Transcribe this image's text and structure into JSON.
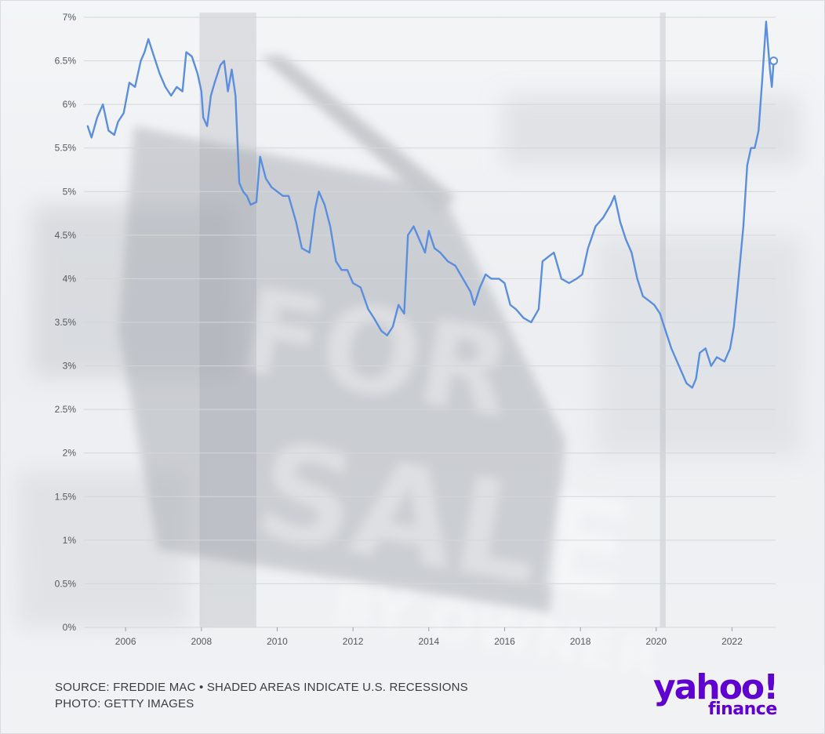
{
  "chart_data": {
    "type": "line",
    "title": "",
    "xlabel": "",
    "ylabel": "",
    "xlim": [
      2004.9,
      2023.15
    ],
    "ylim": [
      0,
      7
    ],
    "y_ticks": [
      "0%",
      "0.5%",
      "1%",
      "1.5%",
      "2%",
      "2.5%",
      "3%",
      "3.5%",
      "4%",
      "4.5%",
      "5%",
      "5.5%",
      "6%",
      "6.5%",
      "7%"
    ],
    "x_ticks": [
      "2006",
      "2008",
      "2010",
      "2012",
      "2014",
      "2016",
      "2018",
      "2020",
      "2022"
    ],
    "grid": true,
    "recession_shading": [
      {
        "start": 2007.95,
        "end": 2009.45
      },
      {
        "start": 2020.1,
        "end": 2020.25
      }
    ],
    "series": [
      {
        "color": "#5b8fde",
        "x": [
          2005.0,
          2005.1,
          2005.25,
          2005.4,
          2005.55,
          2005.7,
          2005.8,
          2005.95,
          2006.1,
          2006.25,
          2006.4,
          2006.5,
          2006.6,
          2006.75,
          2006.9,
          2007.05,
          2007.2,
          2007.35,
          2007.5,
          2007.6,
          2007.75,
          2007.9,
          2008.0,
          2008.05,
          2008.15,
          2008.25,
          2008.35,
          2008.5,
          2008.6,
          2008.7,
          2008.8,
          2008.9,
          2009.0,
          2009.1,
          2009.2,
          2009.3,
          2009.45,
          2009.55,
          2009.7,
          2009.85,
          2010.0,
          2010.15,
          2010.3,
          2010.5,
          2010.65,
          2010.85,
          2011.0,
          2011.1,
          2011.25,
          2011.4,
          2011.55,
          2011.7,
          2011.85,
          2012.0,
          2012.2,
          2012.4,
          2012.55,
          2012.75,
          2012.9,
          2013.05,
          2013.2,
          2013.35,
          2013.45,
          2013.6,
          2013.75,
          2013.9,
          2014.0,
          2014.15,
          2014.3,
          2014.5,
          2014.7,
          2014.9,
          2015.1,
          2015.2,
          2015.35,
          2015.5,
          2015.65,
          2015.85,
          2016.0,
          2016.15,
          2016.3,
          2016.5,
          2016.7,
          2016.9,
          2017.0,
          2017.15,
          2017.3,
          2017.5,
          2017.7,
          2017.9,
          2018.05,
          2018.2,
          2018.4,
          2018.6,
          2018.8,
          2018.9,
          2019.05,
          2019.2,
          2019.35,
          2019.5,
          2019.65,
          2019.8,
          2019.95,
          2020.1,
          2020.25,
          2020.4,
          2020.6,
          2020.8,
          2020.95,
          2021.05,
          2021.15,
          2021.3,
          2021.45,
          2021.6,
          2021.8,
          2021.95,
          2022.05,
          2022.15,
          2022.3,
          2022.4,
          2022.5,
          2022.6,
          2022.7,
          2022.8,
          2022.9,
          2023.0,
          2023.05,
          2023.1
        ],
        "values": [
          5.75,
          5.62,
          5.85,
          6.0,
          5.7,
          5.65,
          5.8,
          5.9,
          6.25,
          6.2,
          6.5,
          6.6,
          6.75,
          6.55,
          6.35,
          6.2,
          6.1,
          6.2,
          6.15,
          6.6,
          6.55,
          6.35,
          6.15,
          5.85,
          5.75,
          6.1,
          6.25,
          6.45,
          6.5,
          6.15,
          6.4,
          6.1,
          5.1,
          5.0,
          4.95,
          4.85,
          4.88,
          5.4,
          5.15,
          5.05,
          5.0,
          4.95,
          4.95,
          4.65,
          4.35,
          4.3,
          4.8,
          5.0,
          4.85,
          4.6,
          4.2,
          4.1,
          4.1,
          3.95,
          3.9,
          3.65,
          3.55,
          3.4,
          3.35,
          3.45,
          3.7,
          3.6,
          4.5,
          4.6,
          4.45,
          4.3,
          4.55,
          4.35,
          4.3,
          4.2,
          4.15,
          4.0,
          3.85,
          3.7,
          3.9,
          4.05,
          4.0,
          4.0,
          3.95,
          3.7,
          3.65,
          3.55,
          3.5,
          3.65,
          4.2,
          4.25,
          4.3,
          4.0,
          3.95,
          4.0,
          4.05,
          4.35,
          4.6,
          4.7,
          4.85,
          4.95,
          4.65,
          4.45,
          4.3,
          4.0,
          3.8,
          3.75,
          3.7,
          3.6,
          3.4,
          3.2,
          3.0,
          2.8,
          2.75,
          2.85,
          3.15,
          3.2,
          3.0,
          3.1,
          3.05,
          3.2,
          3.45,
          3.9,
          4.6,
          5.3,
          5.5,
          5.5,
          5.7,
          6.3,
          6.95,
          6.4,
          6.2,
          6.5
        ]
      }
    ],
    "last_point": {
      "x": 2023.1,
      "y": 6.5
    }
  },
  "footer": {
    "source_line": "SOURCE: FREDDIE MAC • SHADED AREAS INDICATE U.S. RECESSIONS",
    "photo_line": "PHOTO: GETTY IMAGES"
  },
  "logo": {
    "brand": "yahoo!",
    "product": "finance",
    "color": "#5f01d1"
  }
}
